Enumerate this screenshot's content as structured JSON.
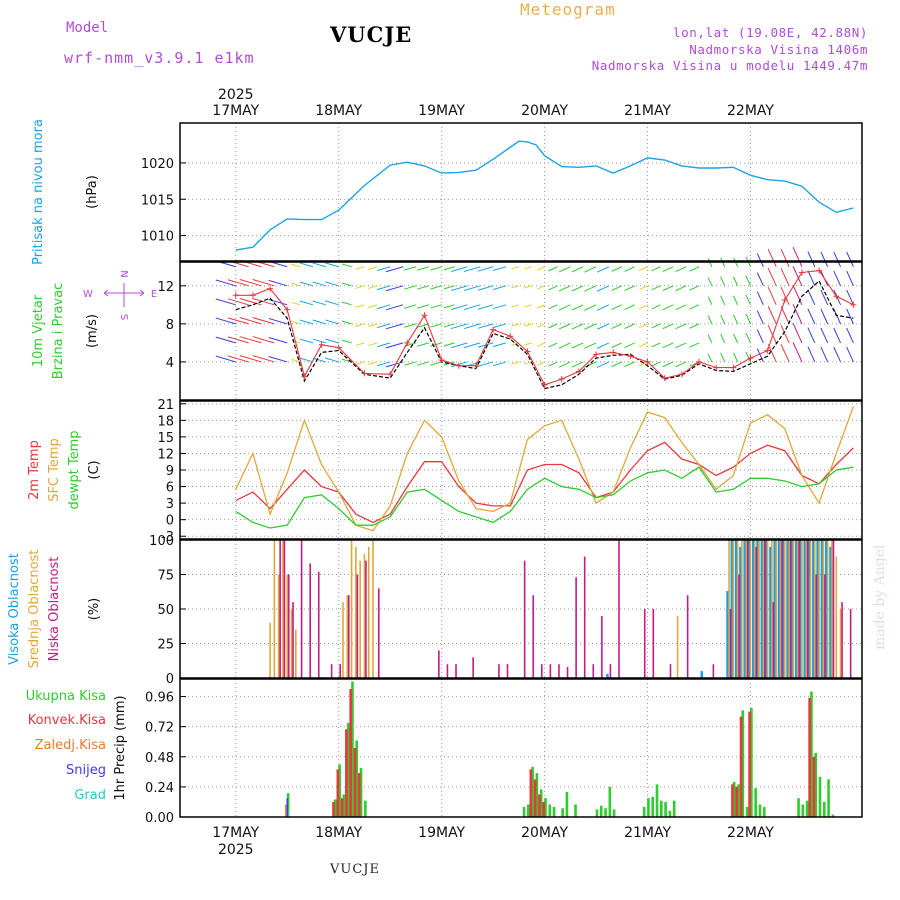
{
  "header": {
    "model_label": "Model",
    "model_version": "wrf-nmm_v3.9.1 e1km",
    "title": "VUCJE",
    "meteogram": "Meteogram",
    "lonlat": "lon,lat (19.08E, 42.88N)",
    "altitude": "Nadmorska Visina 1406m",
    "model_altitude": "Nadmorska Visina u modelu 1449.47m",
    "made_by": "made by Angel",
    "bottom_name": "VUCJE"
  },
  "time_axis": {
    "year": "2025",
    "days": [
      "17MAY",
      "18MAY",
      "19MAY",
      "20MAY",
      "21MAY",
      "22MAY"
    ]
  },
  "panel_labels": {
    "pressure": {
      "name": "Pritisak na nivou mora",
      "unit": "(hPa)"
    },
    "wind": {
      "name1": "10m Vjetar",
      "name2": "Brzina i Pravac",
      "unit": "(m/s)"
    },
    "temp": {
      "l1": "2m Temp",
      "l2": "SFC Temp",
      "l3": "dewpt Temp",
      "unit": "(C)"
    },
    "cloud": {
      "l1": "Visoka Oblacnost",
      "l2": "Srednja Oblacnost",
      "l3": "Niska Oblacnost",
      "unit": "(%)"
    },
    "precip": {
      "l1": "Ukupna Kisa",
      "l2": "Konvek.Kisa",
      "l3": "Zaledj.Kisa",
      "l4": "Snijeg",
      "l5": "Grad",
      "unit": "1hr Precip (mm)"
    }
  },
  "wind_compass": {
    "n": "N",
    "s": "S",
    "w": "W",
    "e": "E"
  },
  "colors": {
    "pressure": "#1aa3e6",
    "wind_speed": "#000000",
    "wind_gust": "#e8383d",
    "t2m": "#e8383d",
    "tsfc": "#e0a83a",
    "dewpt": "#2ecc2e",
    "cloud_high": "#1a9ee6",
    "cloud_mid": "#e0a83a",
    "cloud_low": "#c41a8a",
    "rain_total": "#2ecc2e",
    "rain_conv": "#e8383d",
    "freezing": "#f07a2a",
    "snow": "#3a3ae8",
    "hail": "#2ac8c8"
  },
  "chart_data": [
    {
      "type": "line",
      "title": "Pritisak na nivou mora",
      "ylabel": "(hPa)",
      "ylim": [
        1006.5,
        1025.5
      ],
      "yticks": [
        1010,
        1015,
        1020
      ],
      "x_hours": [
        0,
        4,
        8,
        12,
        16,
        20,
        24,
        30,
        36,
        40,
        44,
        48,
        52,
        56,
        60,
        66,
        68,
        70,
        72,
        76,
        80,
        84,
        88,
        92,
        96,
        100,
        104,
        108,
        112,
        116,
        120,
        124,
        128,
        132,
        136,
        140,
        144
      ],
      "series": [
        {
          "name": "Pritisak na nivou mora",
          "values": [
            1008.0,
            1008.4,
            1010.8,
            1012.3,
            1012.2,
            1012.2,
            1013.5,
            1016.9,
            1019.7,
            1020.1,
            1019.6,
            1018.6,
            1018.7,
            1019.0,
            1020.5,
            1023.0,
            1022.9,
            1022.5,
            1021.0,
            1019.5,
            1019.4,
            1019.6,
            1018.6,
            1019.6,
            1020.7,
            1020.4,
            1019.6,
            1019.3,
            1019.3,
            1019.4,
            1018.3,
            1017.7,
            1017.5,
            1016.8,
            1014.6,
            1013.2,
            1013.8
          ]
        }
      ],
      "grid": true
    },
    {
      "type": "line",
      "title": "10m Vjetar Brzina i Pravac",
      "ylabel": "(m/s)",
      "ylim": [
        0,
        14.5
      ],
      "yticks": [
        4,
        8,
        12
      ],
      "x_hours": [
        0,
        4,
        8,
        12,
        16,
        20,
        24,
        30,
        36,
        40,
        44,
        48,
        52,
        56,
        60,
        64,
        68,
        72,
        76,
        80,
        84,
        88,
        92,
        96,
        100,
        104,
        108,
        112,
        116,
        120,
        124,
        128,
        132,
        136,
        140,
        144
      ],
      "series": [
        {
          "name": "speed",
          "values": [
            9.5,
            10.0,
            10.7,
            8.6,
            2.0,
            5.0,
            5.2,
            2.7,
            2.3,
            5.0,
            7.6,
            4.0,
            3.6,
            3.3,
            7.0,
            6.4,
            4.8,
            1.2,
            1.6,
            2.7,
            4.4,
            4.7,
            4.8,
            3.6,
            2.2,
            2.6,
            3.8,
            3.1,
            3.0,
            3.8,
            4.6,
            7.2,
            10.9,
            12.5,
            8.9,
            8.6
          ]
        },
        {
          "name": "gust",
          "values": [
            11.0,
            11.0,
            11.7,
            9.5,
            2.5,
            5.8,
            5.5,
            2.8,
            2.7,
            6.0,
            8.9,
            4.2,
            3.6,
            3.6,
            7.4,
            6.7,
            5.1,
            1.6,
            2.2,
            3.0,
            4.8,
            5.0,
            4.6,
            4.0,
            2.3,
            2.7,
            4.0,
            3.4,
            3.4,
            4.4,
            5.2,
            10.5,
            13.4,
            13.6,
            10.9,
            10.0
          ]
        }
      ],
      "grid": true
    },
    {
      "type": "line",
      "title": "Temp",
      "ylabel": "(C)",
      "ylim": [
        -3.5,
        21.5
      ],
      "yticks": [
        -3,
        0,
        3,
        6,
        9,
        12,
        15,
        18,
        21
      ],
      "x_hours": [
        0,
        4,
        8,
        12,
        16,
        20,
        24,
        28,
        32,
        36,
        40,
        44,
        48,
        52,
        56,
        60,
        64,
        68,
        72,
        76,
        80,
        84,
        88,
        92,
        96,
        100,
        104,
        108,
        112,
        116,
        120,
        124,
        128,
        132,
        136,
        140,
        144
      ],
      "series": [
        {
          "name": "2m Temp",
          "values": [
            3.5,
            5.0,
            2.0,
            5.5,
            9.0,
            6.0,
            5.0,
            1.0,
            -0.5,
            1.0,
            6.0,
            10.5,
            10.5,
            6.0,
            3.0,
            2.5,
            2.5,
            9.0,
            10.0,
            10.0,
            8.5,
            4.0,
            5.0,
            9.0,
            12.5,
            14.0,
            11.0,
            10.0,
            8.0,
            9.5,
            12.0,
            13.5,
            12.5,
            8.0,
            6.5,
            10.0,
            13.0
          ]
        },
        {
          "name": "SFC Temp",
          "values": [
            5.5,
            12.0,
            1.0,
            8.5,
            18.0,
            10.0,
            5.0,
            -1.0,
            -2.0,
            2.5,
            12.0,
            18.0,
            15.0,
            7.0,
            2.0,
            1.5,
            3.0,
            14.5,
            17.0,
            18.0,
            11.0,
            3.0,
            5.0,
            13.0,
            19.5,
            18.5,
            14.0,
            10.0,
            5.5,
            8.0,
            17.5,
            19.0,
            16.5,
            8.0,
            3.0,
            12.0,
            20.5
          ]
        },
        {
          "name": "dewpt Temp",
          "values": [
            1.5,
            -0.5,
            -1.5,
            -1.0,
            4.0,
            4.5,
            2.0,
            -1.0,
            -1.0,
            0.5,
            5.0,
            5.5,
            3.5,
            1.5,
            0.5,
            -0.5,
            1.5,
            5.5,
            7.5,
            6.0,
            5.5,
            4.0,
            4.5,
            7.0,
            8.5,
            9.0,
            7.5,
            9.5,
            5.0,
            5.5,
            7.5,
            7.5,
            7.0,
            6.0,
            6.5,
            9.0,
            9.5
          ]
        }
      ],
      "grid": true
    },
    {
      "type": "bar",
      "title": "Oblacnost",
      "ylabel": "(%)",
      "ylim": [
        0,
        100
      ],
      "yticks": [
        0,
        25,
        50,
        75,
        100
      ],
      "series": [
        {
          "name": "Visoka Oblacnost",
          "x_hours": [
            87,
            109,
            115,
            116,
            117,
            118,
            119,
            120,
            121,
            122,
            123,
            124,
            125,
            126,
            127,
            128,
            129,
            130,
            131,
            132,
            133,
            134,
            135,
            136,
            137,
            138,
            139
          ],
          "values": [
            3,
            5,
            63,
            100,
            100,
            95,
            100,
            100,
            100,
            100,
            100,
            100,
            95,
            100,
            100,
            100,
            100,
            100,
            100,
            100,
            100,
            100,
            100,
            100,
            100,
            100,
            95
          ]
        },
        {
          "name": "Srednja Oblacnost",
          "x_hours": [
            8,
            9,
            10,
            11,
            12,
            13,
            14,
            25,
            26,
            27,
            28,
            29,
            30,
            31,
            32,
            103,
            115,
            116,
            117,
            118,
            119,
            120,
            121,
            122,
            123,
            124,
            125,
            126,
            127,
            128,
            129,
            130,
            131,
            132,
            133,
            134,
            135,
            136,
            137,
            138,
            139,
            140,
            141
          ],
          "values": [
            40,
            100,
            75,
            100,
            75,
            50,
            35,
            55,
            60,
            100,
            95,
            85,
            90,
            95,
            100,
            45,
            100,
            100,
            100,
            100,
            100,
            100,
            100,
            100,
            100,
            100,
            100,
            100,
            100,
            100,
            100,
            100,
            100,
            100,
            100,
            100,
            100,
            100,
            100,
            100,
            100,
            88,
            50
          ]
        },
        {
          "name": "Niska Oblacnost",
          "x_hours": [
            10,
            11,
            12,
            13,
            15,
            17,
            19,
            22,
            24,
            26,
            28,
            30,
            33,
            47,
            49,
            51,
            55,
            61,
            63,
            67,
            69,
            71,
            73,
            75,
            77,
            79,
            81,
            83,
            85,
            87,
            89,
            95,
            97,
            101,
            105,
            111,
            115,
            117,
            119,
            121,
            123,
            125,
            127,
            129,
            131,
            133,
            135,
            137,
            139,
            141,
            143
          ],
          "values": [
            100,
            100,
            75,
            55,
            100,
            83,
            77,
            10,
            10,
            60,
            75,
            85,
            65,
            20,
            10,
            10,
            15,
            10,
            10,
            85,
            60,
            10,
            10,
            10,
            8,
            73,
            88,
            10,
            45,
            10,
            100,
            50,
            50,
            10,
            60,
            10,
            50,
            75,
            100,
            95,
            100,
            55,
            100,
            100,
            100,
            100,
            75,
            75,
            100,
            55,
            50
          ]
        }
      ],
      "grid": true
    },
    {
      "type": "bar",
      "title": "1hr Precip",
      "ylabel": "1hr Precip (mm)",
      "ylim": [
        0,
        1.1
      ],
      "yticks": [
        0,
        0.24,
        0.48,
        0.72,
        0.96
      ],
      "series": [
        {
          "name": "Ukupna Kisa",
          "x_hours": [
            12,
            23,
            24,
            25,
            26,
            27,
            28,
            29,
            30,
            67,
            68,
            69,
            70,
            71,
            72,
            73,
            74,
            76,
            77,
            79,
            84,
            85,
            86,
            87,
            88,
            95,
            96,
            97,
            98,
            99,
            100,
            101,
            102,
            116,
            117,
            118,
            119,
            120,
            121,
            122,
            123,
            131,
            132,
            133,
            134,
            135,
            136,
            137,
            138,
            139
          ],
          "values": [
            0.19,
            0.14,
            0.42,
            0.18,
            0.75,
            1.08,
            0.61,
            0.39,
            0.13,
            0.08,
            0.1,
            0.4,
            0.35,
            0.22,
            0.15,
            0.1,
            0.08,
            0.07,
            0.2,
            0.1,
            0.06,
            0.09,
            0.07,
            0.24,
            0.06,
            0.08,
            0.15,
            0.16,
            0.26,
            0.13,
            0.12,
            0.05,
            0.13,
            0.28,
            0.26,
            0.85,
            0.08,
            0.87,
            0.23,
            0.1,
            0.08,
            0.15,
            0.1,
            0.13,
            1.0,
            0.51,
            0.32,
            0.12,
            0.3,
            0.02
          ]
        },
        {
          "name": "Konvek.Kisa",
          "x_hours": [
            23,
            24,
            25,
            26,
            27,
            28,
            29,
            69,
            70,
            71,
            72,
            116,
            117,
            118,
            120,
            134,
            135
          ],
          "values": [
            0.12,
            0.38,
            0.15,
            0.7,
            1.02,
            0.55,
            0.35,
            0.38,
            0.3,
            0.18,
            0.12,
            0.26,
            0.24,
            0.8,
            0.84,
            0.95,
            0.48
          ]
        },
        {
          "name": "Zaledj.Kisa",
          "x_hours": [
            12
          ],
          "values": [
            0.1
          ]
        },
        {
          "name": "Snijeg",
          "x_hours": [
            12
          ],
          "values": [
            0.15
          ]
        },
        {
          "name": "Grad",
          "x_hours": [
            12
          ],
          "values": [
            0.05
          ]
        }
      ],
      "grid": true
    }
  ]
}
